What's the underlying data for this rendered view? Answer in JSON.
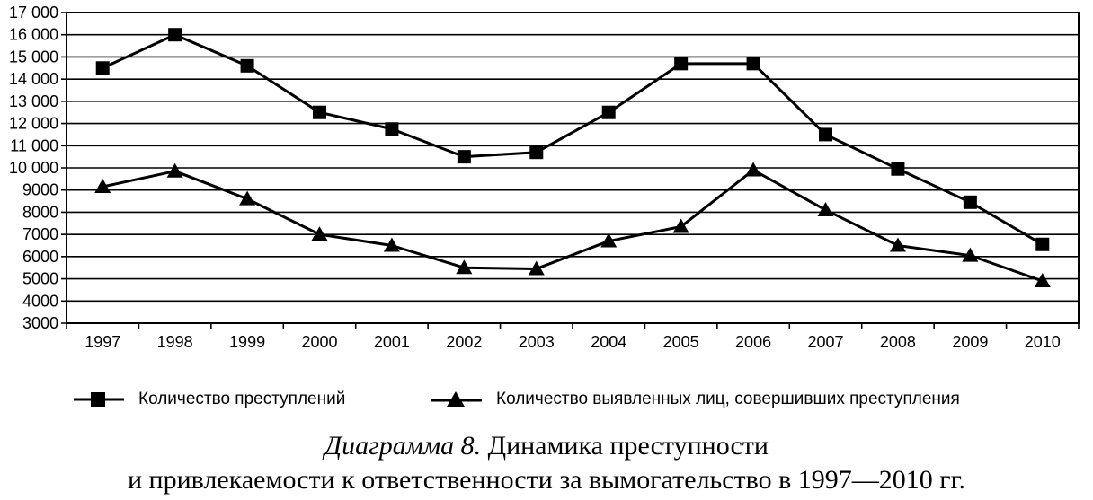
{
  "chart_data": {
    "type": "line",
    "categories": [
      "1997",
      "1998",
      "1999",
      "2000",
      "2001",
      "2002",
      "2003",
      "2004",
      "2005",
      "2006",
      "2007",
      "2008",
      "2009",
      "2010"
    ],
    "y_ticks": [
      "3000",
      "4000",
      "5000",
      "6000",
      "7000",
      "8000",
      "9000",
      "10 000",
      "11 000",
      "12 000",
      "13 000",
      "14 000",
      "15 000",
      "16 000",
      "17 000"
    ],
    "ylim": [
      3000,
      17000
    ],
    "grid": true,
    "legend_position": "bottom",
    "series": [
      {
        "name": "Количество преступлений",
        "marker": "square",
        "values": [
          14500,
          16000,
          14600,
          12500,
          11750,
          10500,
          10700,
          12500,
          14700,
          14700,
          11500,
          9950,
          8450,
          6550
        ]
      },
      {
        "name": "Количество выявленных лиц, совершивших преступления",
        "marker": "triangle",
        "values": [
          9150,
          9850,
          8600,
          7000,
          6500,
          5500,
          5450,
          6700,
          7350,
          9900,
          8100,
          6500,
          6050,
          4900
        ]
      }
    ]
  },
  "caption": {
    "number": "Диаграмма 8.",
    "line1_rest": "Динамика преступности",
    "line2": "и привлекаемости к ответственности за вымогательство в 1997—2010 гг."
  },
  "colors": {
    "line": "#000000",
    "grid": "#000000"
  }
}
